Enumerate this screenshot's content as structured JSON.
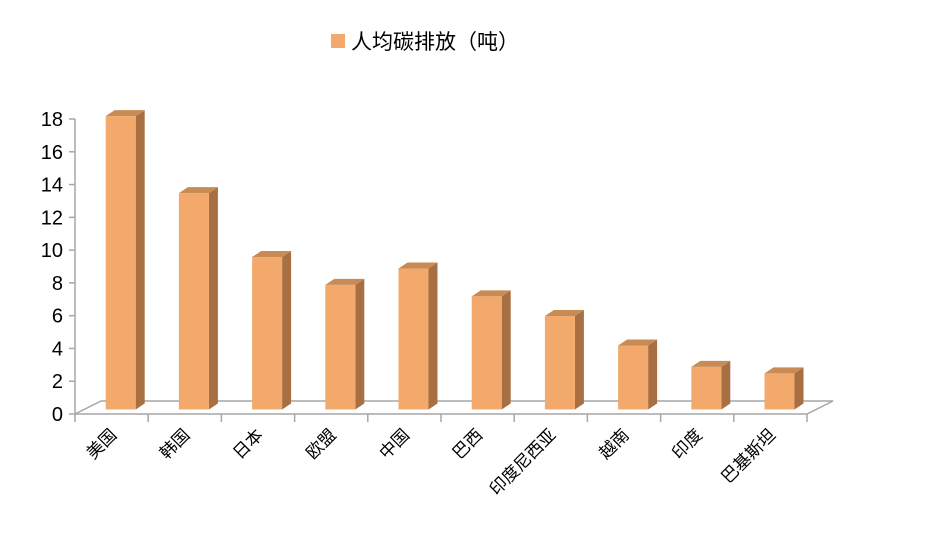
{
  "chart_data": {
    "type": "bar",
    "style": "3d-column",
    "categories": [
      "美国",
      "韩国",
      "日本",
      "欧盟",
      "中国",
      "巴西",
      "印度尼西亚",
      "越南",
      "印度",
      "巴基斯坦"
    ],
    "series": [
      {
        "name": "人均碳排放（吨）",
        "values": [
          17.9,
          13.2,
          9.3,
          7.6,
          8.6,
          6.9,
          5.7,
          3.9,
          2.6,
          2.2
        ]
      }
    ],
    "ylim": [
      0,
      18
    ],
    "yticks": [
      0,
      2,
      4,
      6,
      8,
      10,
      12,
      14,
      16,
      18
    ],
    "grid": false,
    "legend_position": "top",
    "colors": {
      "bar_front": "#F2A96B",
      "bar_side": "#A86F42",
      "bar_top": "#C98B55",
      "axis": "#A6A6A6"
    }
  }
}
